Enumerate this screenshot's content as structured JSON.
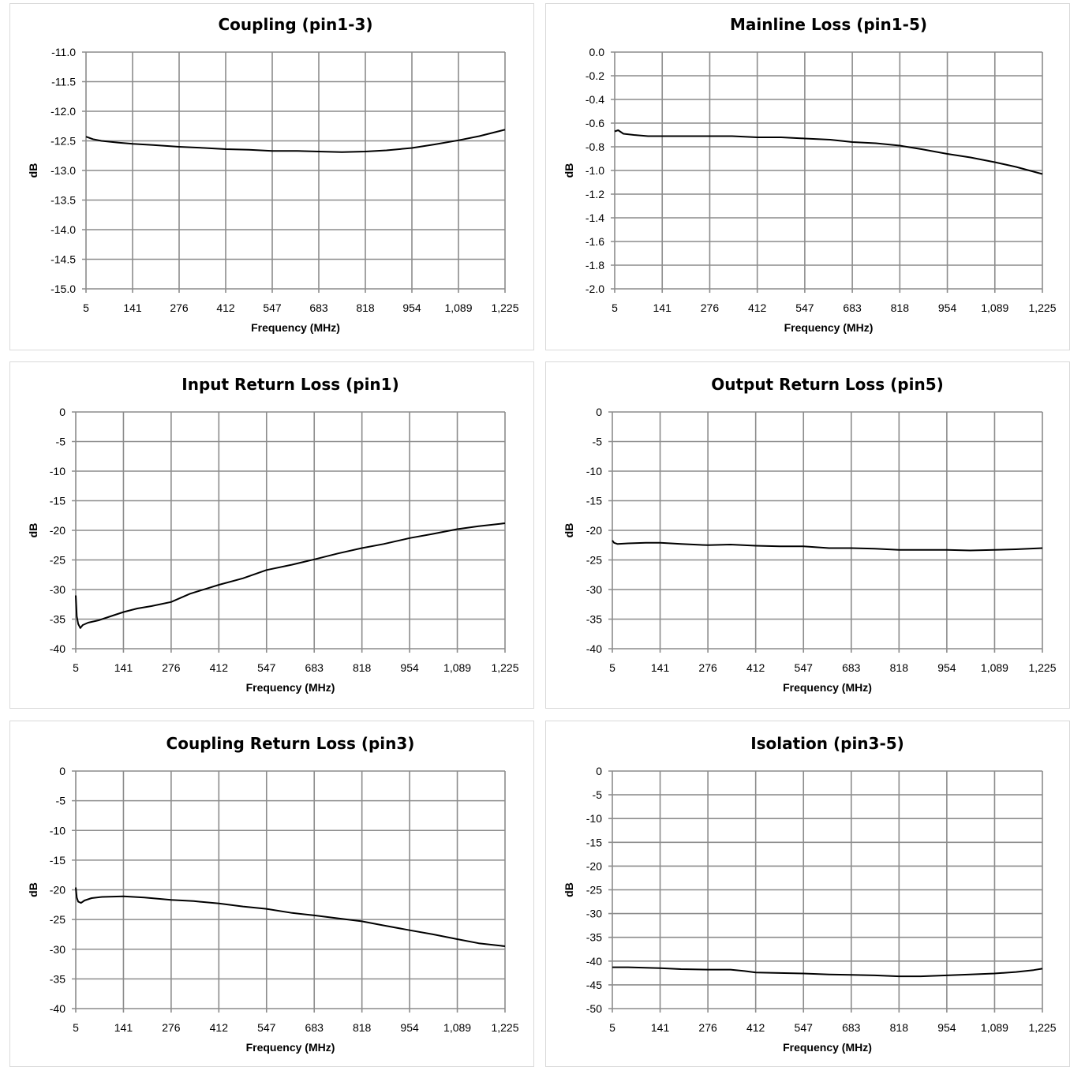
{
  "chart_data": [
    {
      "type": "line",
      "title": "Coupling (pin1-3)",
      "xlabel": "Frequency (MHz)",
      "ylabel": "dB",
      "x_ticks": [
        "5",
        "141",
        "276",
        "412",
        "547",
        "683",
        "818",
        "954",
        "1,089",
        "1,225"
      ],
      "xlim": [
        5,
        1225
      ],
      "ylim": [
        -15.0,
        -11.0
      ],
      "y_ticks": [
        "-11.0",
        "-11.5",
        "-12.0",
        "-12.5",
        "-13.0",
        "-13.5",
        "-14.0",
        "-14.5",
        "-15.0"
      ],
      "grid": true,
      "legend": "none",
      "series": [
        {
          "x": [
            5,
            25,
            50,
            100,
            141,
            200,
            276,
            350,
            412,
            480,
            547,
            620,
            683,
            750,
            818,
            880,
            954,
            1020,
            1089,
            1150,
            1225
          ],
          "y": [
            -12.43,
            -12.47,
            -12.5,
            -12.53,
            -12.55,
            -12.57,
            -12.6,
            -12.62,
            -12.64,
            -12.65,
            -12.67,
            -12.67,
            -12.68,
            -12.69,
            -12.68,
            -12.66,
            -12.62,
            -12.56,
            -12.49,
            -12.42,
            -12.31
          ]
        }
      ]
    },
    {
      "type": "line",
      "title": "Mainline Loss (pin1-5)",
      "xlabel": "Frequency (MHz)",
      "ylabel": "dB",
      "x_ticks": [
        "5",
        "141",
        "276",
        "412",
        "547",
        "683",
        "818",
        "954",
        "1,089",
        "1,225"
      ],
      "xlim": [
        5,
        1225
      ],
      "ylim": [
        -2.0,
        0.0
      ],
      "y_ticks": [
        "0.0",
        "-0.2",
        "-0.4",
        "-0.6",
        "-0.8",
        "-1.0",
        "-1.2",
        "-1.4",
        "-1.6",
        "-1.8",
        "-2.0"
      ],
      "grid": true,
      "legend": "none",
      "series": [
        {
          "x": [
            5,
            15,
            30,
            60,
            100,
            141,
            200,
            276,
            340,
            412,
            480,
            547,
            620,
            683,
            750,
            818,
            880,
            954,
            1020,
            1089,
            1150,
            1200,
            1225
          ],
          "y": [
            -0.67,
            -0.66,
            -0.69,
            -0.7,
            -0.71,
            -0.71,
            -0.71,
            -0.71,
            -0.71,
            -0.72,
            -0.72,
            -0.73,
            -0.74,
            -0.76,
            -0.77,
            -0.79,
            -0.82,
            -0.86,
            -0.89,
            -0.93,
            -0.97,
            -1.01,
            -1.03
          ]
        }
      ]
    },
    {
      "type": "line",
      "title": "Input Return Loss (pin1)",
      "xlabel": "Frequency (MHz)",
      "ylabel": "dB",
      "x_ticks": [
        "5",
        "141",
        "276",
        "412",
        "547",
        "683",
        "818",
        "954",
        "1,089",
        "1,225"
      ],
      "xlim": [
        5,
        1225
      ],
      "ylim": [
        -40,
        0
      ],
      "y_ticks": [
        "0",
        "-5",
        "-10",
        "-15",
        "-20",
        "-25",
        "-30",
        "-35",
        "-40"
      ],
      "grid": true,
      "legend": "none",
      "series": [
        {
          "x": [
            5,
            8,
            12,
            18,
            25,
            40,
            70,
            100,
            141,
            180,
            220,
            276,
            330,
            412,
            480,
            547,
            620,
            683,
            750,
            818,
            880,
            954,
            1020,
            1089,
            1150,
            1225
          ],
          "y": [
            -31,
            -34.5,
            -35.8,
            -36.5,
            -36,
            -35.6,
            -35.2,
            -34.6,
            -33.8,
            -33.2,
            -32.8,
            -32.1,
            -30.7,
            -29.2,
            -28.1,
            -26.7,
            -25.8,
            -24.9,
            -23.9,
            -23.0,
            -22.3,
            -21.3,
            -20.6,
            -19.8,
            -19.3,
            -18.8
          ]
        }
      ]
    },
    {
      "type": "line",
      "title": "Output Return Loss (pin5)",
      "xlabel": "Frequency (MHz)",
      "ylabel": "dB",
      "x_ticks": [
        "5",
        "141",
        "276",
        "412",
        "547",
        "683",
        "818",
        "954",
        "1,089",
        "1,225"
      ],
      "xlim": [
        5,
        1225
      ],
      "ylim": [
        -40,
        0
      ],
      "y_ticks": [
        "0",
        "-5",
        "-10",
        "-15",
        "-20",
        "-25",
        "-30",
        "-35",
        "-40"
      ],
      "grid": true,
      "legend": "none",
      "series": [
        {
          "x": [
            5,
            10,
            20,
            50,
            100,
            141,
            200,
            276,
            340,
            412,
            480,
            547,
            620,
            683,
            750,
            818,
            880,
            954,
            1020,
            1089,
            1150,
            1225
          ],
          "y": [
            -21.7,
            -22.1,
            -22.3,
            -22.2,
            -22.1,
            -22.1,
            -22.3,
            -22.5,
            -22.4,
            -22.6,
            -22.7,
            -22.7,
            -23.0,
            -23.0,
            -23.1,
            -23.3,
            -23.3,
            -23.3,
            -23.4,
            -23.3,
            -23.2,
            -23.0
          ]
        }
      ]
    },
    {
      "type": "line",
      "title": "Coupling Return Loss (pin3)",
      "xlabel": "Frequency (MHz)",
      "ylabel": "dB",
      "x_ticks": [
        "5",
        "141",
        "276",
        "412",
        "547",
        "683",
        "818",
        "954",
        "1,089",
        "1,225"
      ],
      "xlim": [
        5,
        1225
      ],
      "ylim": [
        -40,
        0
      ],
      "y_ticks": [
        "0",
        "-5",
        "-10",
        "-15",
        "-20",
        "-25",
        "-30",
        "-35",
        "-40"
      ],
      "grid": true,
      "legend": "none",
      "series": [
        {
          "x": [
            5,
            8,
            12,
            20,
            30,
            50,
            80,
            141,
            200,
            276,
            340,
            412,
            480,
            547,
            620,
            683,
            750,
            818,
            880,
            954,
            1020,
            1089,
            1150,
            1225
          ],
          "y": [
            -19.6,
            -21.3,
            -22.0,
            -22.2,
            -21.8,
            -21.4,
            -21.2,
            -21.1,
            -21.3,
            -21.7,
            -21.9,
            -22.3,
            -22.8,
            -23.2,
            -23.9,
            -24.3,
            -24.8,
            -25.3,
            -26.0,
            -26.8,
            -27.5,
            -28.3,
            -29.0,
            -29.5
          ]
        }
      ]
    },
    {
      "type": "line",
      "title": "Isolation (pin3-5)",
      "xlabel": "Frequency (MHz)",
      "ylabel": "dB",
      "x_ticks": [
        "5",
        "141",
        "276",
        "412",
        "547",
        "683",
        "818",
        "954",
        "1,089",
        "1,225"
      ],
      "xlim": [
        5,
        1225
      ],
      "ylim": [
        -50,
        0
      ],
      "y_ticks": [
        "0",
        "-5",
        "-10",
        "-15",
        "-20",
        "-25",
        "-30",
        "-35",
        "-40",
        "-45",
        "-50"
      ],
      "grid": true,
      "legend": "none",
      "series": [
        {
          "x": [
            5,
            50,
            100,
            141,
            200,
            276,
            340,
            380,
            412,
            480,
            547,
            620,
            683,
            750,
            818,
            880,
            954,
            1020,
            1089,
            1150,
            1200,
            1225
          ],
          "y": [
            -41.3,
            -41.3,
            -41.4,
            -41.5,
            -41.7,
            -41.8,
            -41.8,
            -42.1,
            -42.4,
            -42.5,
            -42.6,
            -42.8,
            -42.9,
            -43.0,
            -43.2,
            -43.2,
            -43.0,
            -42.8,
            -42.6,
            -42.3,
            -41.9,
            -41.6
          ]
        }
      ]
    }
  ]
}
